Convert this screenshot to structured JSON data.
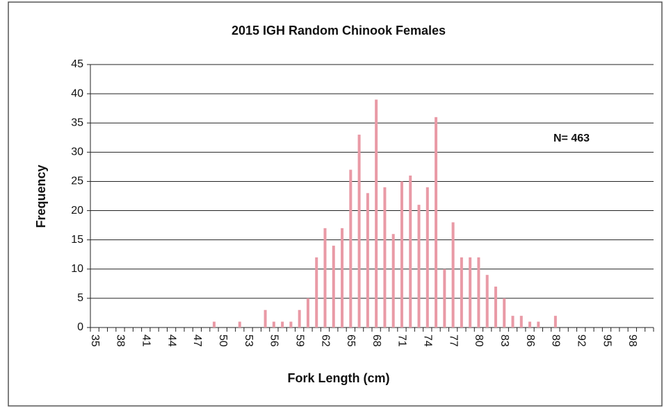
{
  "chart_data": {
    "type": "bar",
    "title": "2015 IGH Random Chinook Females",
    "x_label": "Fork Length (cm)",
    "y_label": "Frequency",
    "annotation": "N= 463",
    "categories": [
      "35",
      null,
      null,
      "38",
      null,
      null,
      "41",
      null,
      null,
      "44",
      null,
      null,
      "47",
      null,
      null,
      "50",
      null,
      null,
      "53",
      null,
      null,
      "56",
      null,
      null,
      "59",
      null,
      null,
      "62",
      null,
      null,
      "65",
      null,
      null,
      "68",
      null,
      null,
      "71",
      null,
      null,
      "74",
      null,
      null,
      "77",
      null,
      null,
      "80",
      null,
      null,
      "83",
      null,
      null,
      "86",
      null,
      null,
      "89",
      null,
      null,
      "92",
      null,
      null,
      "95",
      null,
      null,
      "98",
      null,
      null
    ],
    "values": [
      0,
      0,
      0,
      0,
      0,
      0,
      0,
      0,
      0,
      0,
      0,
      0,
      0,
      0,
      1,
      0,
      0,
      1,
      0,
      0,
      3,
      1,
      1,
      1,
      3,
      5,
      12,
      17,
      14,
      17,
      27,
      33,
      23,
      39,
      24,
      16,
      25,
      26,
      21,
      24,
      36,
      10,
      18,
      12,
      12,
      12,
      9,
      7,
      5,
      2,
      2,
      1,
      1,
      0,
      2,
      0,
      0,
      0,
      0,
      0,
      0,
      0,
      0,
      0,
      0,
      0
    ],
    "color": "#e99aa6",
    "ylim": [
      0,
      45
    ],
    "yticks": [
      0,
      5,
      10,
      15,
      20,
      25,
      30,
      35,
      40,
      45
    ],
    "grid": true
  }
}
